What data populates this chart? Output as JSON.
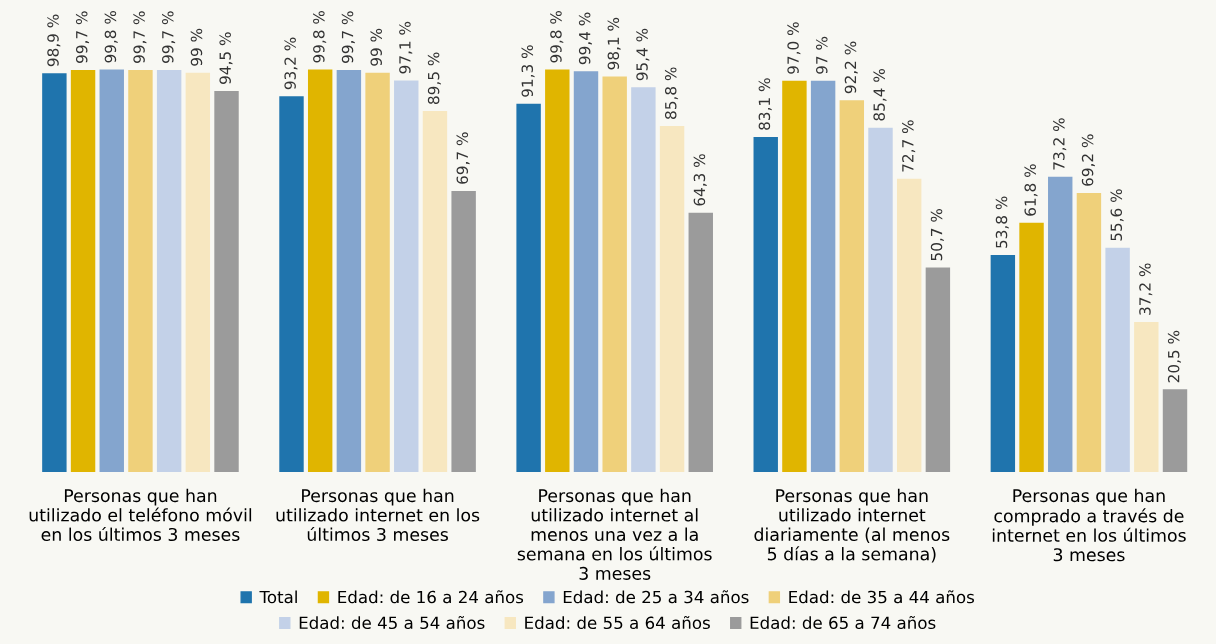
{
  "chart_data": {
    "type": "bar",
    "categories": [
      "Personas que han\nutilizado el teléfono móvil\nen los últimos 3 meses",
      "Personas que han\nutilizado internet en los\núltimos 3 meses",
      "Personas que han\nutilizado internet al\nmenos una vez a la\nsemana en los últimos\n3 meses",
      "Personas que han\nutilizado internet\ndiariamente (al menos\n5 días a la semana)",
      "Personas que han\ncomprado a través de\ninternet en los últimos\n3 meses"
    ],
    "tick_labels": "x",
    "grid": false,
    "legend": "bottom",
    "data_labels": true,
    "series": [
      {
        "name": "Total",
        "color": "#1f74ad",
        "values": [
          98.9,
          93.2,
          91.3,
          83.1,
          53.8
        ],
        "value_labels": [
          "98,9 %",
          "93,2 %",
          "91,3 %",
          "83,1 %",
          "53,8 %"
        ]
      },
      {
        "name": "Edad: de 16 a 24 años",
        "color": "#e0b500",
        "values": [
          99.7,
          99.8,
          99.8,
          97.0,
          61.8
        ],
        "value_labels": [
          "99,7 %",
          "99,8 %",
          "99,8 %",
          "97,0 %",
          "61,8 %"
        ]
      },
      {
        "name": "Edad: de 25 a 34 años",
        "color": "#84a5ce",
        "values": [
          99.8,
          99.7,
          99.4,
          97,
          73.2
        ],
        "value_labels": [
          "99,8 %",
          "99,7 %",
          "99,4 %",
          "97 %",
          "73,2 %"
        ]
      },
      {
        "name": "Edad: de 35 a 44 años",
        "color": "#efd07a",
        "values": [
          99.7,
          99,
          98.1,
          92.2,
          69.2
        ],
        "value_labels": [
          "99,7 %",
          "99 %",
          "98,1 %",
          "92,2 %",
          "69,2 %"
        ]
      },
      {
        "name": "Edad: de 45 a 54 años",
        "color": "#c3d1e8",
        "values": [
          99.7,
          97.1,
          95.4,
          85.4,
          55.6
        ],
        "value_labels": [
          "99,7 %",
          "97,1 %",
          "95,4 %",
          "85,4 %",
          "55,6 %"
        ]
      },
      {
        "name": "Edad: de 55 a 64 años",
        "color": "#f7e7c0",
        "values": [
          99,
          89.5,
          85.8,
          72.7,
          37.2
        ],
        "value_labels": [
          "99 %",
          "89,5 %",
          "85,8 %",
          "72,7 %",
          "37,2 %"
        ]
      },
      {
        "name": "Edad: de 65 a 74 años",
        "color": "#9b9b9b",
        "values": [
          94.5,
          69.7,
          64.3,
          50.7,
          20.5
        ],
        "value_labels": [
          "94,5 %",
          "69,7 %",
          "64,3 %",
          "50,7 %",
          "20,5 %"
        ]
      }
    ]
  }
}
